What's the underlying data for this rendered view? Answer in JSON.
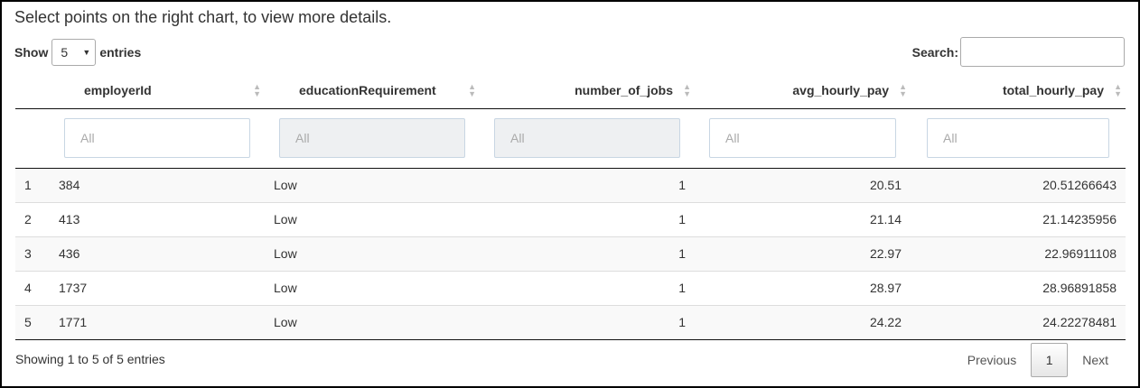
{
  "instruction": "Select points on the right chart, to view more details.",
  "length": {
    "show_label": "Show",
    "selected": "5",
    "entries_label": "entries"
  },
  "search": {
    "label": "Search:",
    "value": ""
  },
  "columns": [
    "employerId",
    "educationRequirement",
    "number_of_jobs",
    "avg_hourly_pay",
    "total_hourly_pay"
  ],
  "filters": {
    "placeholder": "All",
    "disabled": [
      false,
      true,
      true,
      false,
      false
    ]
  },
  "rows": [
    {
      "index": "1",
      "employerId": "384",
      "educationRequirement": "Low",
      "number_of_jobs": "1",
      "avg_hourly_pay": "20.51",
      "total_hourly_pay": "20.51266643"
    },
    {
      "index": "2",
      "employerId": "413",
      "educationRequirement": "Low",
      "number_of_jobs": "1",
      "avg_hourly_pay": "21.14",
      "total_hourly_pay": "21.14235956"
    },
    {
      "index": "3",
      "employerId": "436",
      "educationRequirement": "Low",
      "number_of_jobs": "1",
      "avg_hourly_pay": "22.97",
      "total_hourly_pay": "22.96911108"
    },
    {
      "index": "4",
      "employerId": "1737",
      "educationRequirement": "Low",
      "number_of_jobs": "1",
      "avg_hourly_pay": "28.97",
      "total_hourly_pay": "28.96891858"
    },
    {
      "index": "5",
      "employerId": "1771",
      "educationRequirement": "Low",
      "number_of_jobs": "1",
      "avg_hourly_pay": "24.22",
      "total_hourly_pay": "24.22278481"
    }
  ],
  "info": "Showing 1 to 5 of 5 entries",
  "pagination": {
    "previous": "Previous",
    "current": "1",
    "next": "Next"
  }
}
